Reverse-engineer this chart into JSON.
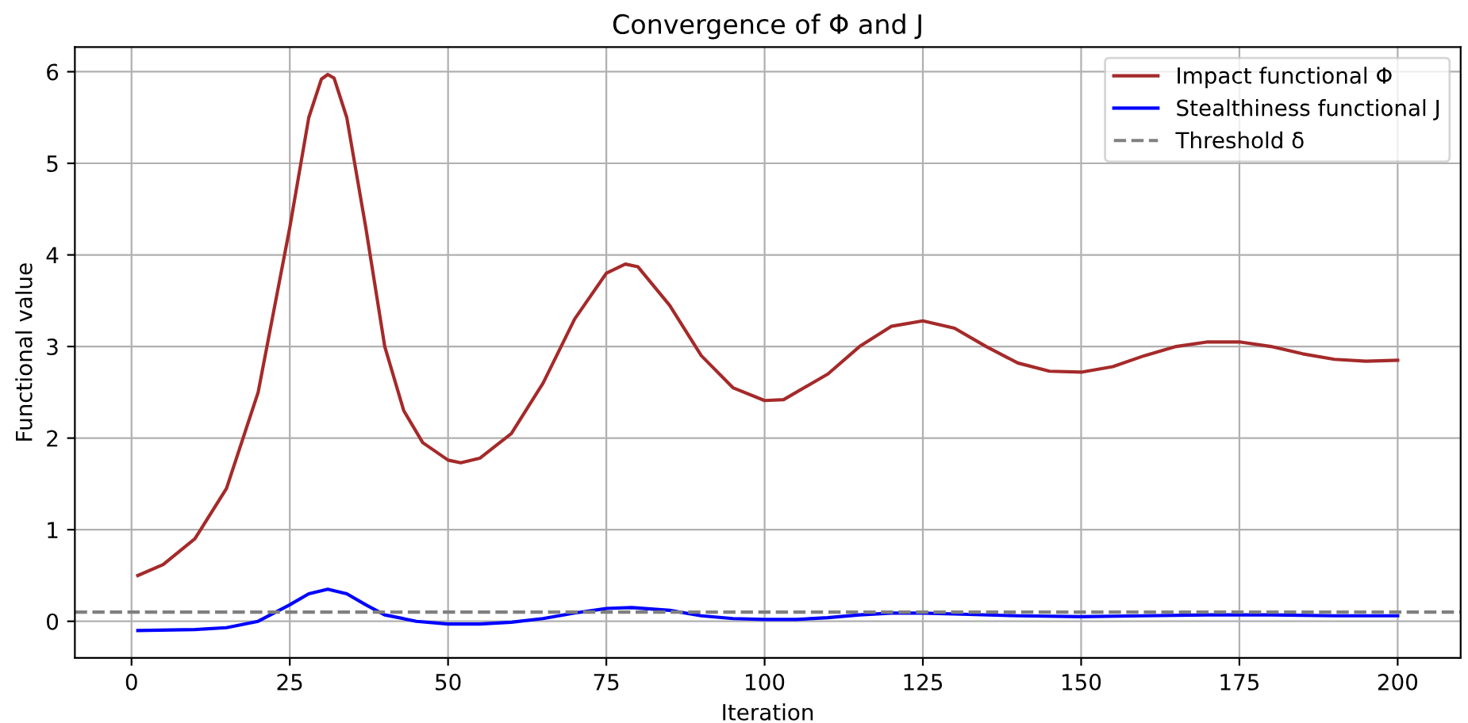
{
  "chart_data": {
    "type": "line",
    "title": "Convergence of Φ and J",
    "xlabel": "Iteration",
    "ylabel": "Functional value",
    "xlim": [
      -8.95,
      209.95
    ],
    "ylim": [
      -0.4,
      6.27
    ],
    "xticks": [
      0,
      25,
      50,
      75,
      100,
      125,
      150,
      175,
      200
    ],
    "yticks": [
      0,
      1,
      2,
      3,
      4,
      5,
      6
    ],
    "grid": true,
    "legend": "top right",
    "line_style": "solid",
    "series": [
      {
        "name": "Impact functional Φ",
        "color": "#a52a2a",
        "x": [
          1,
          5,
          10,
          15,
          20,
          25,
          28,
          30,
          31,
          32,
          34,
          37,
          40,
          43,
          46,
          50,
          52,
          55,
          60,
          65,
          70,
          75,
          78,
          80,
          85,
          90,
          95,
          100,
          103,
          110,
          115,
          120,
          125,
          130,
          135,
          140,
          145,
          150,
          155,
          160,
          165,
          170,
          175,
          180,
          185,
          190,
          195,
          200
        ],
        "values": [
          0.5,
          0.62,
          0.9,
          1.45,
          2.5,
          4.3,
          5.5,
          5.92,
          5.97,
          5.93,
          5.5,
          4.3,
          3.0,
          2.3,
          1.95,
          1.76,
          1.73,
          1.78,
          2.05,
          2.6,
          3.3,
          3.8,
          3.9,
          3.87,
          3.45,
          2.9,
          2.55,
          2.41,
          2.42,
          2.7,
          3.0,
          3.22,
          3.28,
          3.2,
          3.0,
          2.82,
          2.73,
          2.72,
          2.78,
          2.9,
          3.0,
          3.05,
          3.05,
          3.0,
          2.92,
          2.86,
          2.84,
          2.85
        ]
      },
      {
        "name": "Stealthiness functional J",
        "color": "#0000ff",
        "x": [
          1,
          10,
          15,
          20,
          25,
          28,
          31,
          34,
          37,
          40,
          45,
          50,
          55,
          60,
          65,
          70,
          75,
          79,
          85,
          90,
          95,
          100,
          105,
          110,
          115,
          120,
          125,
          130,
          140,
          150,
          160,
          170,
          180,
          190,
          200
        ],
        "values": [
          -0.1,
          -0.09,
          -0.07,
          0.0,
          0.18,
          0.3,
          0.35,
          0.3,
          0.18,
          0.07,
          0.0,
          -0.03,
          -0.03,
          -0.01,
          0.03,
          0.09,
          0.14,
          0.15,
          0.12,
          0.06,
          0.03,
          0.02,
          0.02,
          0.04,
          0.07,
          0.09,
          0.09,
          0.08,
          0.06,
          0.05,
          0.06,
          0.07,
          0.07,
          0.06,
          0.06
        ]
      }
    ],
    "ref_lines": [
      {
        "axis": "y",
        "value": 0.1,
        "label": "Threshold δ",
        "color": "#808080",
        "line_style": "dashed"
      }
    ]
  }
}
